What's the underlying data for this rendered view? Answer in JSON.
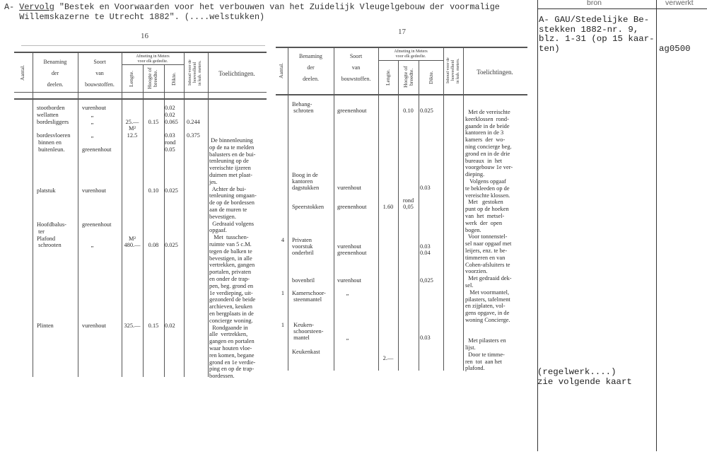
{
  "header": {
    "prefix": "A- ",
    "vervolg": "Vervolg",
    "title_line1": " \"Bestek en Voorwaarden voor het verbouwen van het Zuidelijk Vleugelgebouw der voormalige",
    "title_line2": "   Willemskazerne te Utrecht 1882\". (....welstukken)"
  },
  "table_header": {
    "aantal": "Aantal.",
    "benaming": "Benaming\nder\ndeelen.",
    "soort": "Soort\nvan\nbouwstoffen.",
    "afmeting": "Afmeting in Meters\nvoor elk gedeelte.",
    "lengte": "Lengte.",
    "hoogte": "Hoogte of\nbreedte.",
    "dikte": "Dikte.",
    "inhoud": "Inhoud voor de\nhoeveelheid\nin kub. meters.",
    "toelichtingen": "Toelichtingen."
  },
  "page16": {
    "number": "16",
    "rows": [
      {
        "aantal": "",
        "benaming": "stootborden\nwellatten\nbordesliggers\n\nbordesvloeren\n binnen en\n buitenleun.",
        "soort": "vurenhout\n      „\n      „\n\n      „\n\ngreenenhout",
        "lengte": "\n\n25.—\nM²\n12.5",
        "hoogte": "\n\n0.15",
        "dikte": "0.02\n0.02\n0.065\n\n0.03\nrond\n0.05",
        "inhoud": "\n\n0.244\n\n0.375"
      },
      {
        "aantal": "",
        "benaming": "platstuk",
        "soort": "vurenhout",
        "lengte": "",
        "hoogte": "0.10",
        "dikte": "0.025",
        "inhoud": ""
      },
      {
        "aantal": "",
        "benaming": "Hoofdbalus-\n ter\nPlafond\n schrooten",
        "soort": "greenenhout\n\n\n      „",
        "lengte": "\n\nM²\n480.—",
        "hoogte": "\n\n\n0.08",
        "dikte": "\n\n\n0.025",
        "inhoud": ""
      },
      {
        "aantal": "",
        "benaming": "Plinten",
        "soort": "vurenhout",
        "lengte": "325.—",
        "hoogte": "0.15",
        "dikte": "0.02",
        "inhoud": ""
      }
    ],
    "toelichtingen": " De binnenleuning\nop de na te melden\nbalusters en de bui-\ntenleuning op de\nvereischte ijzeren\nduimen met plaat-\njes.\n  Achter de bui-\ntenleuning omgaan-\nde op de bordessen\naan de muren te\nbevestigen.\n  Gedraaid volgens\nopgaaf.\n   Met  tusschen-\nruimte van 5 c.M.\ntegen de balken te\nbevestigen, in alle\nvertrekken, gangen\nportalen, privaten\nen onder de trap-\npen, beg. grond en\n1e verdieping, uit-\ngezonderd de beide\narchieven, keuken\nen bergplaats in de\nconcierge woning.\n  Rondgaande in\nalle  vertrekken,\ngangen en portalen\nwaar houten vloe-\nren komen, begane\ngrond en 1e verdie-\nping en op de trap-\nbordessen."
  },
  "page17": {
    "number": "17",
    "rows": [
      {
        "aantal": "",
        "benaming": "Behang-\n schroten",
        "soort": "\ngreenenhout",
        "lengte": "",
        "hoogte": "\n0.10",
        "dikte": "\n0.025",
        "inhoud": ""
      },
      {
        "aantal": "",
        "benaming": "Boog in de\nkantoren\ndagstukken",
        "soort": "\n\nvurenhout",
        "lengte": "",
        "hoogte": "",
        "dikte": "\n\n0.03",
        "inhoud": ""
      },
      {
        "aantal": "",
        "benaming": "\nSpeerstokken",
        "soort": "\ngreenenhout",
        "lengte": "\n1.60",
        "hoogte": "rond\n0,05",
        "dikte": "",
        "inhoud": ""
      },
      {
        "aantal": "4",
        "benaming": "Privaten\nvoorstuk\nonderbril",
        "soort": "\nvurenhout\ngreenenhout",
        "lengte": "",
        "hoogte": "",
        "dikte": "\n0.03\n0.04",
        "inhoud": ""
      },
      {
        "aantal": "",
        "benaming": "bovenbril",
        "soort": "vurenhout",
        "lengte": "",
        "hoogte": "",
        "dikte": "0,025",
        "inhoud": ""
      },
      {
        "aantal": "1",
        "benaming": "Kamerschoor-\n steenmantel",
        "soort": "      „",
        "lengte": "",
        "hoogte": "",
        "dikte": "",
        "inhoud": ""
      },
      {
        "aantal": "1",
        "benaming": " Keuken-\n schoorsteen-\n mantel",
        "soort": "\n\n      „",
        "lengte": "",
        "hoogte": "",
        "dikte": "\n\n0.03",
        "inhoud": ""
      },
      {
        "aantal": "",
        "benaming": "Keukenkast",
        "soort": "",
        "lengte": "\n2.—",
        "hoogte": "",
        "dikte": "",
        "inhoud": ""
      }
    ],
    "toelichtingen": "  Met de vereischte\nkeerklossen  rond-\ngaande in de beide\nkantoren in de 3\nkamers  der  wo-\nning concierge beg.\ngrond en in de drie\nbureaux  in  het\nvoorgebouw 1e ver-\ndieping.\n   Volgens opgaaf\nte bekleeden op de\nvereischte klossen.\n  Met   gestoken\npunt op de hoeken\nvan  het  metsel-\nwerk  der  open\nbogen.\n  Voor tonnenstel-\nsel naar opgaaf met\nleijers, enz. te be-\ntimmeren en van\nCohen-afsluiters te\nvoorzien.\n  Met gedraaid dek-\nsel.\n   Met voormantel,\npilasters, tafelment\nen zijplaten, vol-\ngens opgave, in de\nwoning Concierge.\n\n\n  Met pilasters en\nlijst.\n  Door te timme-\nren  tot  aan het\nplafond."
  },
  "index_card": {
    "bron_header": "bron",
    "verwerkt_header": "verwerkt",
    "bron": "A- GAU/Stedelijke Be-\nstekken 1882-nr. 9,\nblz. 1-31 (op 15 kaar-\nten)",
    "verwerkt": "ag0500",
    "note": "(regelwerk....)\nzie volgende kaart"
  }
}
